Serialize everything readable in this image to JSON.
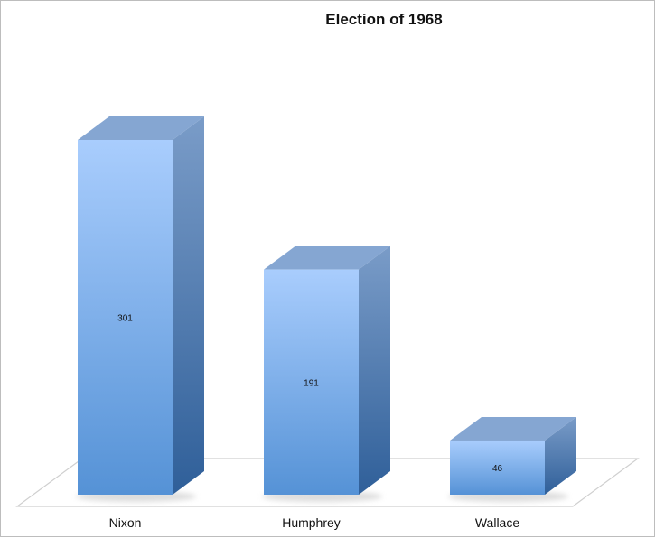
{
  "chart_data": {
    "type": "bar",
    "title": "Election of 1968",
    "xlabel": "",
    "ylabel": "",
    "categories": [
      "Nixon",
      "Humphrey",
      "Wallace"
    ],
    "values": [
      301,
      191,
      46
    ],
    "data_labels": [
      "301",
      "191",
      "46"
    ],
    "ylim": [
      0,
      301
    ],
    "grid": false,
    "legend": "none",
    "style": "3d-column",
    "colors": {
      "front_top": "#a9cdfd",
      "front_bottom": "#5592d6",
      "side_top": "#7a9cc8",
      "side_bottom": "#2f5f99",
      "top_face": "#85a6d2",
      "floor_stroke": "#cfcfcf",
      "shadow": "#d9d9d9"
    }
  }
}
